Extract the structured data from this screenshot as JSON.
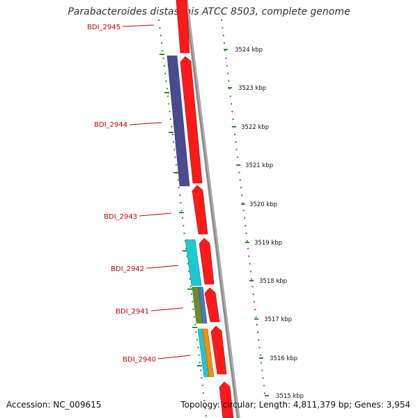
{
  "title": "Parabacteroides distasonis ATCC 8503, complete genome",
  "footer": {
    "accession": "Accession: NC_009615",
    "topology": "Topology: circular; Length: 4,811,379 bp; Genes: 3,954"
  },
  "colors": {
    "gene_red": "#ff0000",
    "gene_label": "#cc0000",
    "backbone": "#888888",
    "tick_green": "#2e8b2e",
    "cog_purple": "#4a4a90",
    "cog_cyan": "#1ec8d0",
    "cog_olive": "#6b8c2a",
    "cog_blue": "#4a7ab8",
    "cog_orange": "#ff8c00"
  },
  "genes": [
    {
      "name": "BDI_2945"
    },
    {
      "name": "BDI_2944"
    },
    {
      "name": "BDI_2943"
    },
    {
      "name": "BDI_2942"
    },
    {
      "name": "BDI_2941"
    },
    {
      "name": "BDI_2940"
    }
  ],
  "scale_labels": [
    "3524 kbp",
    "3523 kbp",
    "3522 kbp",
    "3521 kbp",
    "3520 kbp",
    "3519 kbp",
    "3518 kbp",
    "3517 kbp",
    "3516 kbp",
    "3515 kbp"
  ]
}
